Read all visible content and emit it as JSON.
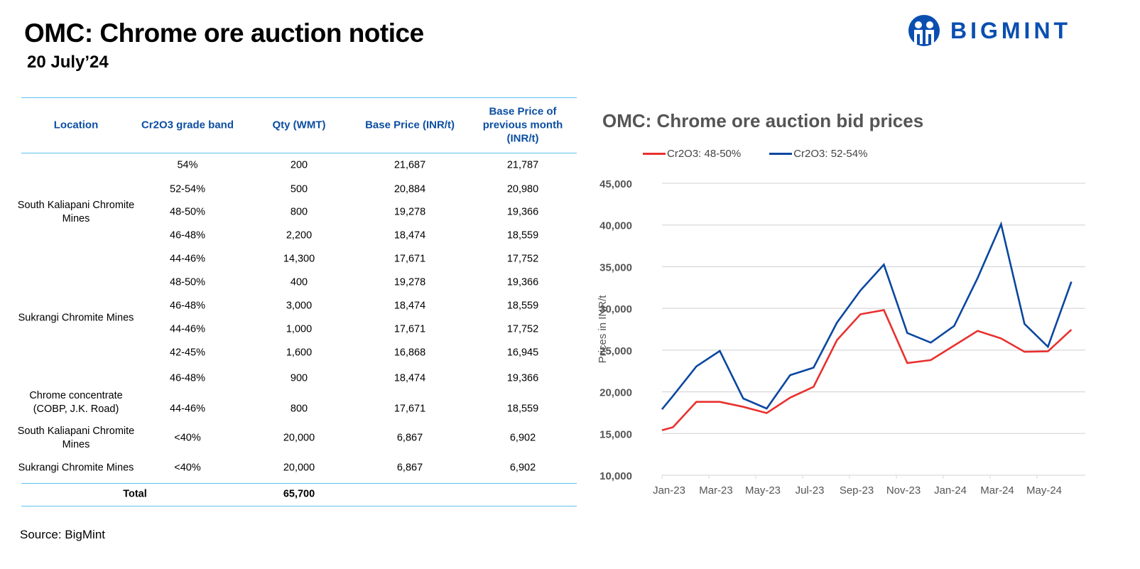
{
  "header": {
    "title": "OMC: Chrome ore auction notice",
    "date": "20 July’24"
  },
  "logo": {
    "text": "BIGMINT",
    "color": "#0a4fb0"
  },
  "table": {
    "columns": [
      "Location",
      "Cr2O3 grade band",
      "Qty (WMT)",
      "Base Price (INR/t)",
      "Base Price of previous month (INR/t)"
    ],
    "groups": [
      {
        "location": "South Kaliapani Chromite Mines",
        "rows": [
          [
            "54%",
            "200",
            "21,687",
            "21,787"
          ],
          [
            "52-54%",
            "500",
            "20,884",
            "20,980"
          ],
          [
            "48-50%",
            "800",
            "19,278",
            "19,366"
          ],
          [
            "46-48%",
            "2,200",
            "18,474",
            "18,559"
          ],
          [
            "44-46%",
            "14,300",
            "17,671",
            "17,752"
          ]
        ]
      },
      {
        "location": "Sukrangi Chromite Mines",
        "rows": [
          [
            "48-50%",
            "400",
            "19,278",
            "19,366"
          ],
          [
            "46-48%",
            "3,000",
            "18,474",
            "18,559"
          ],
          [
            "44-46%",
            "1,000",
            "17,671",
            "17,752"
          ],
          [
            "42-45%",
            "1,600",
            "16,868",
            "16,945"
          ]
        ]
      },
      {
        "location": "Chrome concentrate (COBP, J.K. Road)",
        "rows": [
          [
            "46-48%",
            "900",
            "18,474",
            "19,366"
          ],
          [
            "44-46%",
            "800",
            "17,671",
            "18,559"
          ]
        ]
      },
      {
        "location": "South Kaliapani Chromite Mines",
        "rows": [
          [
            "<40%",
            "20,000",
            "6,867",
            "6,902"
          ]
        ]
      },
      {
        "location": "Sukrangi Chromite Mines",
        "rows": [
          [
            "<40%",
            "20,000",
            "6,867",
            "6,902"
          ]
        ]
      }
    ],
    "total": {
      "label": "Total",
      "qty": "65,700"
    }
  },
  "source": "Source: BigMint",
  "chart_data": {
    "type": "line",
    "title": "OMC: Chrome ore auction bid prices",
    "xlabel": "",
    "ylabel": "Prices in INR/t",
    "ylim": [
      10000,
      45000
    ],
    "yticks": [
      "10,000",
      "15,000",
      "20,000",
      "25,000",
      "30,000",
      "35,000",
      "40,000",
      "45,000"
    ],
    "xticks": [
      "Jan-23",
      "Mar-23",
      "May-23",
      "Jul-23",
      "Sep-23",
      "Nov-23",
      "Jan-24",
      "Mar-24",
      "May-24"
    ],
    "grid": true,
    "legend": "top",
    "x": [
      "2023-01-01",
      "2023-01-15",
      "2023-02-15",
      "2023-03-15",
      "2023-04-15",
      "2023-05-15",
      "2023-06-15",
      "2023-07-15",
      "2023-08-15",
      "2023-09-15",
      "2023-10-15",
      "2023-11-15",
      "2023-12-15",
      "2024-01-15",
      "2024-02-15",
      "2024-03-15",
      "2024-04-15",
      "2024-05-15",
      "2024-06-15"
    ],
    "series": [
      {
        "name": "Cr2O3: 48-50%",
        "color": "#e8312f",
        "values": [
          15400,
          15750,
          18800,
          18800,
          18200,
          17450,
          19300,
          20600,
          26200,
          29300,
          29800,
          23450,
          23800,
          25550,
          27300,
          26400,
          24800,
          24850,
          27450
        ]
      },
      {
        "name": "Cr2O3: 52-54%",
        "color": "#0a47a0",
        "values": [
          17900,
          19500,
          23050,
          24900,
          19200,
          18000,
          22000,
          22900,
          28300,
          32150,
          35250,
          27050,
          25900,
          27900,
          33650,
          40100,
          28150,
          25400,
          33200
        ]
      }
    ]
  }
}
